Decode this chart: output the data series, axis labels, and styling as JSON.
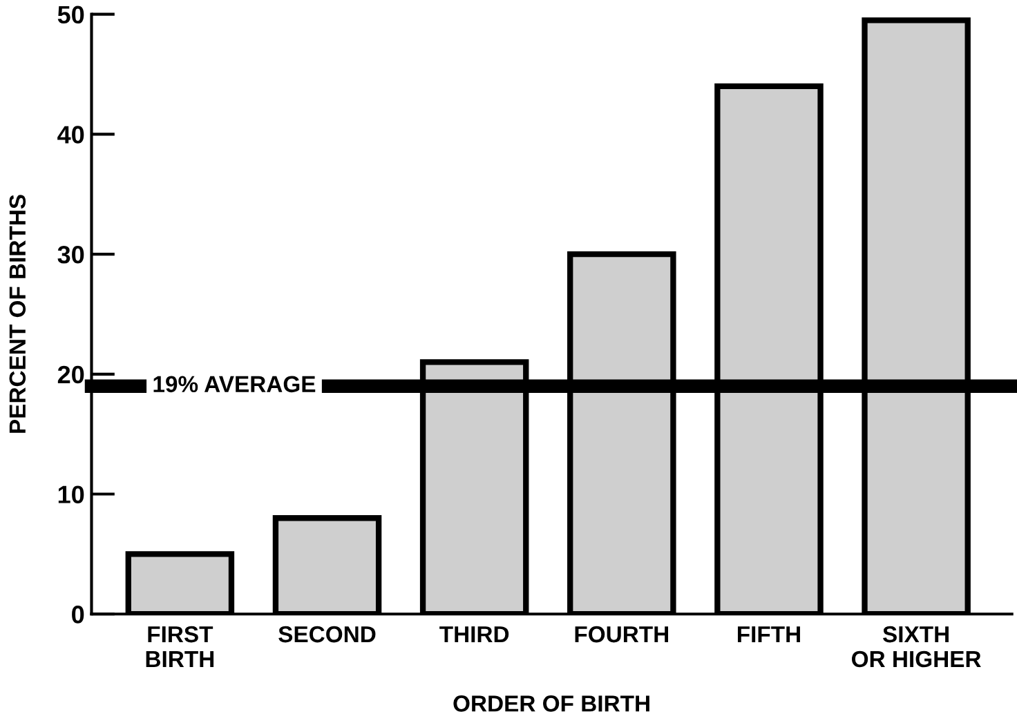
{
  "chart_data": {
    "type": "bar",
    "xlabel": "ORDER OF BIRTH",
    "ylabel": "PERCENT OF BIRTHS",
    "categories": [
      "FIRST\nBIRTH",
      "SECOND",
      "THIRD",
      "FOURTH",
      "FIFTH",
      "SIXTH\nOR HIGHER"
    ],
    "values": [
      5,
      8,
      21,
      30,
      44,
      49.5
    ],
    "color": "#cfcfcf",
    "ylim": [
      0,
      50
    ],
    "yticks": [
      0,
      10,
      20,
      30,
      40,
      50
    ],
    "grid": false,
    "ref_lines": [
      {
        "axis": "y",
        "value": 19,
        "label": "19% AVERAGE",
        "color": "#000000"
      }
    ]
  }
}
